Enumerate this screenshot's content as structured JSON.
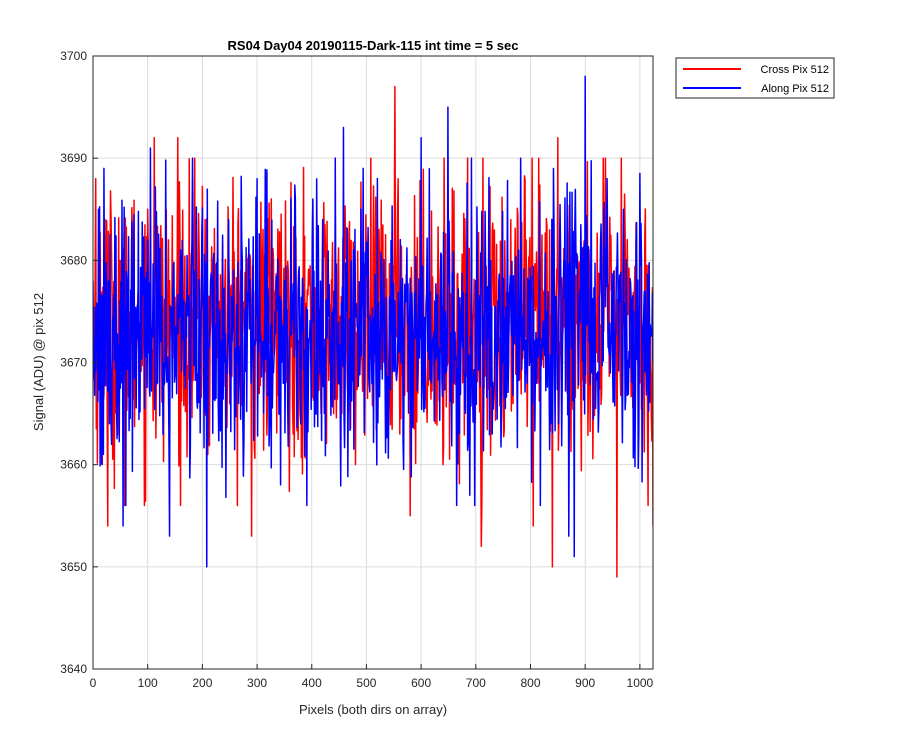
{
  "chart_data": {
    "type": "line",
    "title": "RS04 Day04 20190115-Dark-115 int time = 5 sec",
    "xlabel": "Pixels (both dirs on array)",
    "ylabel": "Signal (ADU) @ pix 512",
    "xlim": [
      0,
      1024
    ],
    "ylim": [
      3640,
      3700
    ],
    "xticks": [
      0,
      100,
      200,
      300,
      400,
      500,
      600,
      700,
      800,
      900,
      1000
    ],
    "yticks": [
      3640,
      3650,
      3660,
      3670,
      3680,
      3690,
      3700
    ],
    "xtick_labels": [
      "0",
      "100",
      "200",
      "300",
      "400",
      "500",
      "600",
      "700",
      "800",
      "900",
      "1000"
    ],
    "ytick_labels": [
      "3640",
      "3650",
      "3660",
      "3670",
      "3680",
      "3690",
      "3700"
    ],
    "grid": true,
    "legend_position": "outside-top-right",
    "series": [
      {
        "name": "Cross Pix 512",
        "color": "#ff0000",
        "mean": 3674,
        "points": [
          [
            0,
            3675
          ],
          [
            5,
            3688
          ],
          [
            12,
            3670
          ],
          [
            17,
            3660
          ],
          [
            22,
            3684
          ],
          [
            27,
            3654
          ],
          [
            35,
            3676
          ],
          [
            50,
            3680
          ],
          [
            58,
            3656
          ],
          [
            100,
            3685
          ],
          [
            112,
            3692
          ],
          [
            125,
            3676
          ],
          [
            140,
            3678
          ],
          [
            155,
            3692
          ],
          [
            205,
            3684
          ],
          [
            210,
            3661
          ],
          [
            230,
            3676
          ],
          [
            290,
            3653
          ],
          [
            300,
            3682
          ],
          [
            330,
            3680
          ],
          [
            400,
            3672
          ],
          [
            440,
            3665
          ],
          [
            480,
            3660
          ],
          [
            520,
            3684
          ],
          [
            552,
            3697
          ],
          [
            580,
            3655
          ],
          [
            640,
            3660
          ],
          [
            700,
            3674
          ],
          [
            710,
            3652
          ],
          [
            740,
            3672
          ],
          [
            805,
            3654
          ],
          [
            815,
            3690
          ],
          [
            840,
            3650
          ],
          [
            850,
            3692
          ],
          [
            900,
            3670
          ],
          [
            958,
            3649
          ],
          [
            1000,
            3668
          ],
          [
            1015,
            3656
          ],
          [
            1024,
            3654
          ]
        ]
      },
      {
        "name": "Along Pix 512",
        "color": "#0000ff",
        "mean": 3673,
        "points": [
          [
            0,
            3678
          ],
          [
            10,
            3685
          ],
          [
            20,
            3689
          ],
          [
            30,
            3664
          ],
          [
            55,
            3654
          ],
          [
            105,
            3691
          ],
          [
            140,
            3653
          ],
          [
            160,
            3681
          ],
          [
            208,
            3650
          ],
          [
            248,
            3684
          ],
          [
            300,
            3688
          ],
          [
            330,
            3669
          ],
          [
            370,
            3686
          ],
          [
            402,
            3686
          ],
          [
            420,
            3684
          ],
          [
            458,
            3693
          ],
          [
            490,
            3685
          ],
          [
            520,
            3688
          ],
          [
            556,
            3669
          ],
          [
            600,
            3692
          ],
          [
            649,
            3695
          ],
          [
            660,
            3668
          ],
          [
            700,
            3678
          ],
          [
            750,
            3670
          ],
          [
            778,
            3681
          ],
          [
            800,
            3670
          ],
          [
            830,
            3675
          ],
          [
            870,
            3653
          ],
          [
            880,
            3651
          ],
          [
            900,
            3698
          ],
          [
            940,
            3688
          ],
          [
            970,
            3685
          ],
          [
            1010,
            3677
          ],
          [
            1024,
            3670
          ]
        ]
      }
    ]
  }
}
